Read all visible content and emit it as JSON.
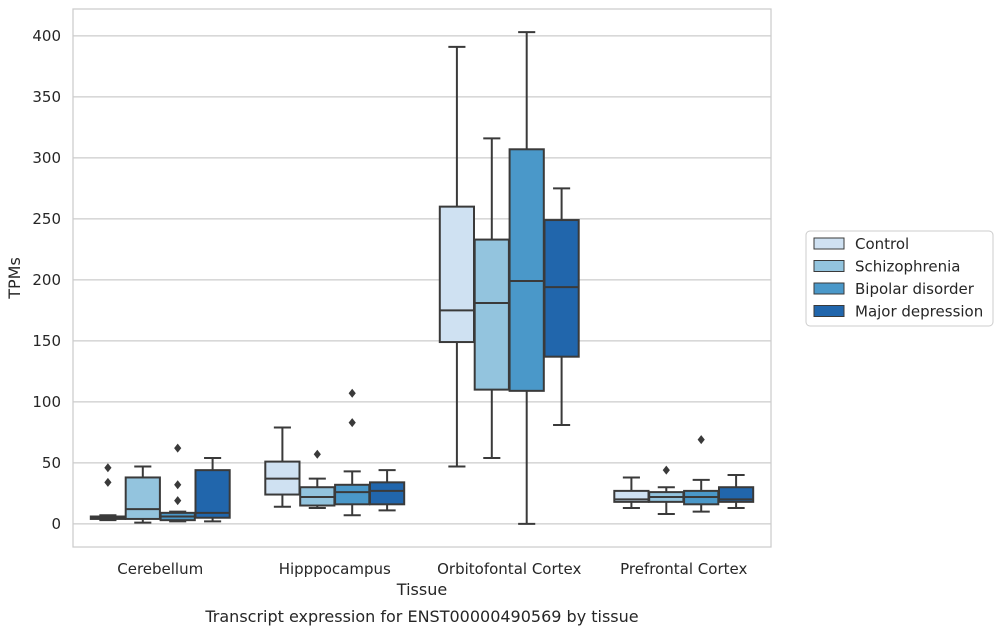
{
  "chart_data": {
    "type": "box",
    "title": "",
    "caption": "Transcript expression for ENST00000490569 by tissue",
    "xlabel": "Tissue",
    "ylabel": "TPMs",
    "ylim": [
      -19,
      422
    ],
    "yticks": [
      0,
      50,
      100,
      150,
      200,
      250,
      300,
      350,
      400
    ],
    "grid": "horizontal",
    "legend_position": "right",
    "categories": [
      "Cerebellum",
      "Hipppocampus",
      "Orbitofontal Cortex",
      "Prefrontal Cortex"
    ],
    "series": [
      {
        "name": "Control",
        "color": "#cfe1f2",
        "boxes": [
          {
            "whislo": 3,
            "q1": 4,
            "med": 5,
            "q3": 6,
            "whishi": 7,
            "fliers": [
              46,
              34
            ]
          },
          {
            "whislo": 14,
            "q1": 24,
            "med": 37,
            "q3": 51,
            "whishi": 79,
            "fliers": []
          },
          {
            "whislo": 47,
            "q1": 149,
            "med": 175,
            "q3": 260,
            "whishi": 391,
            "fliers": []
          },
          {
            "whislo": 13,
            "q1": 18,
            "med": 20,
            "q3": 27,
            "whishi": 38,
            "fliers": []
          }
        ]
      },
      {
        "name": "Schizophrenia",
        "color": "#93c4de",
        "boxes": [
          {
            "whislo": 1,
            "q1": 4,
            "med": 12,
            "q3": 38,
            "whishi": 47,
            "fliers": []
          },
          {
            "whislo": 13,
            "q1": 15,
            "med": 22,
            "q3": 30,
            "whishi": 37,
            "fliers": [
              57
            ]
          },
          {
            "whislo": 54,
            "q1": 110,
            "med": 181,
            "q3": 233,
            "whishi": 316,
            "fliers": []
          },
          {
            "whislo": 8,
            "q1": 18,
            "med": 22,
            "q3": 26,
            "whishi": 30,
            "fliers": [
              44
            ]
          }
        ]
      },
      {
        "name": "Bipolar disorder",
        "color": "#4a98c9",
        "boxes": [
          {
            "whislo": 2,
            "q1": 3,
            "med": 6,
            "q3": 9,
            "whishi": 10,
            "fliers": [
              62,
              32,
              19
            ]
          },
          {
            "whislo": 7,
            "q1": 16,
            "med": 26,
            "q3": 32,
            "whishi": 43,
            "fliers": [
              107,
              83
            ]
          },
          {
            "whislo": 0,
            "q1": 109,
            "med": 199,
            "q3": 307,
            "whishi": 403,
            "fliers": []
          },
          {
            "whislo": 10,
            "q1": 16,
            "med": 22,
            "q3": 27,
            "whishi": 36,
            "fliers": [
              69
            ]
          }
        ]
      },
      {
        "name": "Major depression",
        "color": "#2166ac",
        "boxes": [
          {
            "whislo": 2,
            "q1": 5,
            "med": 9,
            "q3": 44,
            "whishi": 54,
            "fliers": []
          },
          {
            "whislo": 11,
            "q1": 16,
            "med": 27,
            "q3": 34,
            "whishi": 44,
            "fliers": []
          },
          {
            "whislo": 81,
            "q1": 137,
            "med": 194,
            "q3": 249,
            "whishi": 275,
            "fliers": []
          },
          {
            "whislo": 13,
            "q1": 18,
            "med": 20,
            "q3": 30,
            "whishi": 40,
            "fliers": []
          }
        ]
      }
    ]
  }
}
